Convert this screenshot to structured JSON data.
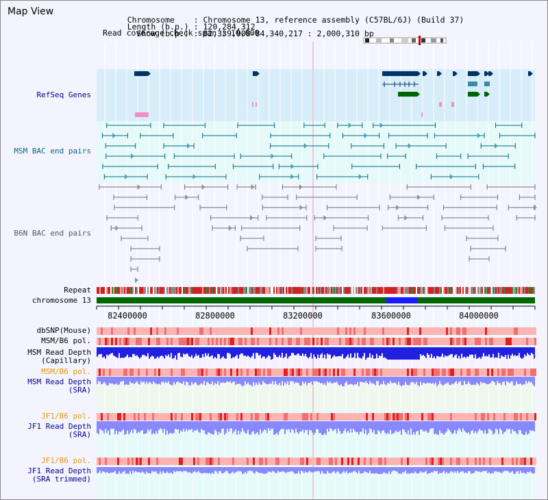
{
  "title": "Map View",
  "header": {
    "l1_key": "Chromosome    ",
    "l1_val": ": Chromosome 13, reference assembly (C57BL/6J) (Build 37)",
    "l2_key": "Length (b.p.) ",
    "l2_val": ": 120,284,312",
    "l3_key": "  Show (b.p.) ",
    "l3_val": ": 82,339,908-84,340,217 : 2,000,310 bp",
    "l4": "Read coverage check span : 10,000"
  },
  "labels": {
    "refseq": "RefSeq Genes",
    "msm_bac": "MSM BAC end pairs",
    "b6n_bac": "B6N BAC end pairs",
    "repeat": "Repeat",
    "chrom": "chromosome 13",
    "dbsnp": "dbSNP(Mouse)",
    "msm_pol1": "MSM/B6 pol.",
    "msm_depth_cap_1": "MSM Read Depth",
    "msm_depth_cap_2": "(Capillary)",
    "msm_pol2": "MSM/B6 pol.",
    "msm_depth_sra_1": "MSM Read Depth",
    "msm_depth_sra_2": "(SRA)",
    "jf1_pol1": "JF1/B6 pol.",
    "jf1_depth_sra_1": "JF1 Read Depth",
    "jf1_depth_sra_2": "(SRA)",
    "jf1_pol2": "JF1/B6 pol.",
    "jf1_depth_trim_1": "JF1 Read Depth",
    "jf1_depth_trim_2": "(SRA trimmed)"
  },
  "ruler": {
    "ticks": [
      "82400000",
      "82800000",
      "83200000",
      "83600000",
      "84000000"
    ]
  },
  "colors": {
    "refseq": "#003366",
    "msm_bac": "#006680",
    "b6n": "#707070",
    "chrom": "#006600",
    "chrom_highlight": "#1a1aff",
    "depth_cap": "#2020e0",
    "depth_sra": "#8888ff",
    "pol_light": "#ffb3b3",
    "pol_dark": "#e02020"
  }
}
